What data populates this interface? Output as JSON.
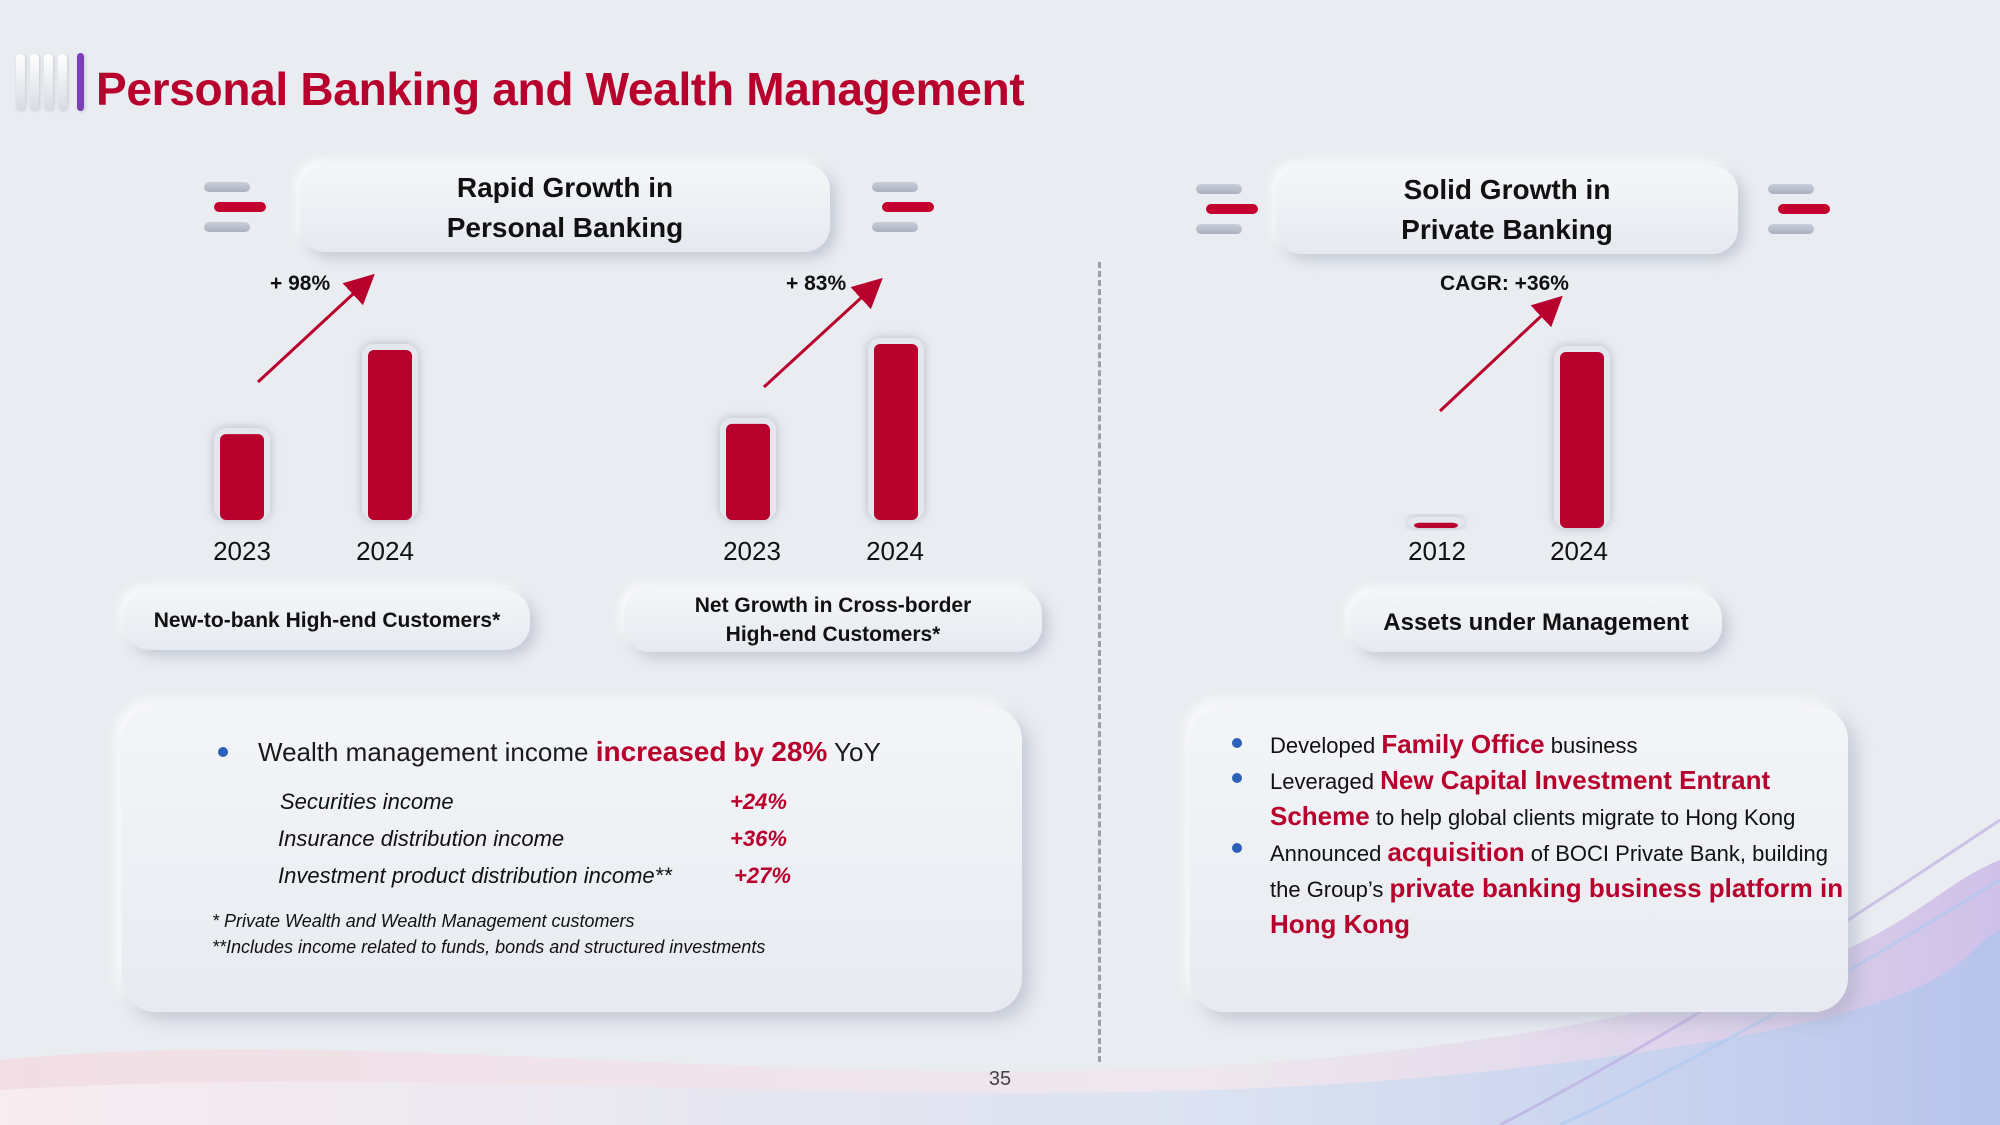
{
  "page_title": "Personal Banking and Wealth Management",
  "page_number": "35",
  "colors": {
    "accent_red": "#b8002d",
    "bar_red": "#b8002d",
    "bullet_blue": "#2c5fb8",
    "deco_purple": "#7b3fb8"
  },
  "left_section": {
    "heading_line1": "Rapid Growth in",
    "heading_line2": "Personal Banking"
  },
  "right_section": {
    "heading_line1": "Solid Growth in",
    "heading_line2": "Private Banking"
  },
  "chart_data": [
    {
      "type": "bar",
      "categories": [
        "2023",
        "2024"
      ],
      "values": [
        1.0,
        1.98
      ],
      "annotation": "+ 98%",
      "label": "New-to-bank High-end Customers*"
    },
    {
      "type": "bar",
      "categories": [
        "2023",
        "2024"
      ],
      "values": [
        1.0,
        1.83
      ],
      "annotation": "+ 83%",
      "label_line1": "Net Growth in Cross-border",
      "label_line2": "High-end Customers*"
    },
    {
      "type": "bar",
      "categories": [
        "2012",
        "2024"
      ],
      "values": [
        0.03,
        1.0
      ],
      "annotation": "CAGR: +36%",
      "label": "Assets under Management"
    }
  ],
  "wealth_card": {
    "bullet_prefix": "Wealth management income ",
    "bullet_highlight": "increased",
    "bullet_by": " by ",
    "bullet_pct": "28%",
    "bullet_suffix": " YoY",
    "items": [
      {
        "label": "Securities income",
        "value": "+24%"
      },
      {
        "label": "Insurance distribution income",
        "value": "+36%"
      },
      {
        "label": "Investment product distribution income**",
        "value": "+27%"
      }
    ],
    "note1": "*  Private Wealth and Wealth Management customers",
    "note2": "**Includes income related to funds, bonds and structured investments"
  },
  "private_card": {
    "b1_pre": "Developed ",
    "b1_hl": "Family Office",
    "b1_post": " business",
    "b2_pre": "Leveraged ",
    "b2_hl1": "New Capital Investment Entrant",
    "b2_hl2": "Scheme",
    "b2_post": " to help global clients migrate to Hong Kong",
    "b3_pre": "Announced ",
    "b3_hl": "acquisition",
    "b3_mid": " of BOCI Private Bank, building",
    "b3_line2_pre": "the Group’s ",
    "b3_hl2a": "private banking business platform in",
    "b3_hl2b": "Hong Kong"
  }
}
